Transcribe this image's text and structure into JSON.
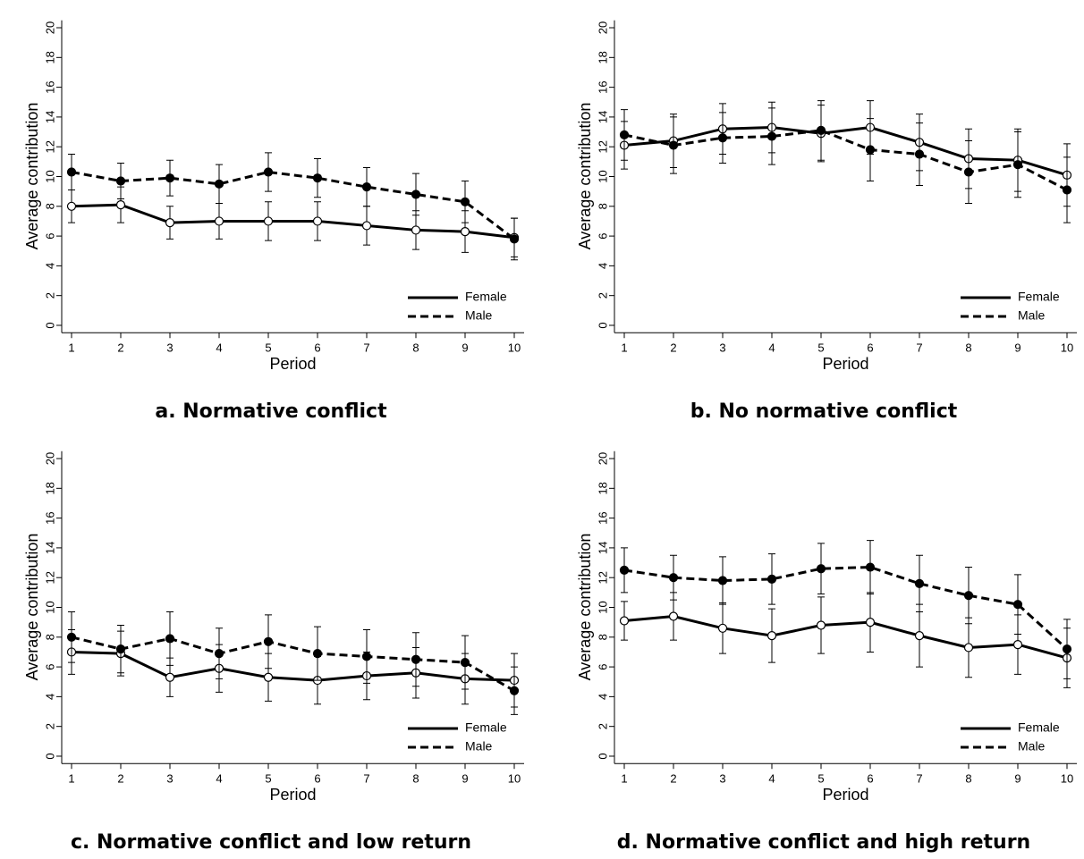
{
  "chart_data": [
    {
      "type": "line",
      "title": "a. Normative conflict",
      "x_label": "Period",
      "y_label": "Average contribution",
      "x": [
        1,
        2,
        3,
        4,
        5,
        6,
        7,
        8,
        9,
        10
      ],
      "xlim": [
        0.8,
        10.2
      ],
      "xticks": [
        1,
        2,
        3,
        4,
        5,
        6,
        7,
        8,
        9,
        10
      ],
      "ylim": [
        -0.5,
        20.5
      ],
      "yticks": [
        0,
        2,
        4,
        6,
        8,
        10,
        12,
        14,
        16,
        18,
        20
      ],
      "grid": false,
      "legend": "lower right",
      "series": [
        {
          "name": "Female",
          "color": "#000000",
          "dash": "solid",
          "marker": "hollow",
          "values": [
            8.0,
            8.1,
            6.9,
            7.0,
            7.0,
            7.0,
            6.7,
            6.4,
            6.3,
            5.9
          ],
          "errors": [
            1.1,
            1.2,
            1.1,
            1.2,
            1.3,
            1.3,
            1.3,
            1.3,
            1.4,
            1.3
          ]
        },
        {
          "name": "Male",
          "color": "#000000",
          "dash": "dashed",
          "marker": "filled",
          "values": [
            10.3,
            9.7,
            9.9,
            9.5,
            10.3,
            9.9,
            9.3,
            8.8,
            8.3,
            5.8
          ],
          "errors": [
            1.2,
            1.2,
            1.2,
            1.3,
            1.3,
            1.3,
            1.3,
            1.4,
            1.4,
            1.4
          ]
        }
      ]
    },
    {
      "type": "line",
      "title": "b. No normative conflict",
      "x_label": "Period",
      "y_label": "Average contribution",
      "x": [
        1,
        2,
        3,
        4,
        5,
        6,
        7,
        8,
        9,
        10
      ],
      "xlim": [
        0.8,
        10.2
      ],
      "xticks": [
        1,
        2,
        3,
        4,
        5,
        6,
        7,
        8,
        9,
        10
      ],
      "ylim": [
        -0.5,
        20.5
      ],
      "yticks": [
        0,
        2,
        4,
        6,
        8,
        10,
        12,
        14,
        16,
        18,
        20
      ],
      "grid": false,
      "legend": "lower right",
      "series": [
        {
          "name": "Female",
          "color": "#000000",
          "dash": "solid",
          "marker": "hollow",
          "values": [
            12.1,
            12.4,
            13.2,
            13.3,
            12.9,
            13.3,
            12.3,
            11.2,
            11.1,
            10.1
          ],
          "errors": [
            1.6,
            1.8,
            1.7,
            1.7,
            1.9,
            1.8,
            1.9,
            2.0,
            2.1,
            2.1
          ]
        },
        {
          "name": "Male",
          "color": "#000000",
          "dash": "dashed",
          "marker": "filled",
          "values": [
            12.8,
            12.1,
            12.6,
            12.7,
            13.1,
            11.8,
            11.5,
            10.3,
            10.8,
            9.1
          ],
          "errors": [
            1.7,
            1.9,
            1.7,
            1.9,
            2.0,
            2.1,
            2.1,
            2.1,
            2.2,
            2.2
          ]
        }
      ]
    },
    {
      "type": "line",
      "title": "c. Normative conflict and low return",
      "x_label": "Period",
      "y_label": "Average contribution",
      "x": [
        1,
        2,
        3,
        4,
        5,
        6,
        7,
        8,
        9,
        10
      ],
      "xlim": [
        0.8,
        10.2
      ],
      "xticks": [
        1,
        2,
        3,
        4,
        5,
        6,
        7,
        8,
        9,
        10
      ],
      "ylim": [
        -0.5,
        20.5
      ],
      "yticks": [
        0,
        2,
        4,
        6,
        8,
        10,
        12,
        14,
        16,
        18,
        20
      ],
      "grid": false,
      "legend": "lower right",
      "series": [
        {
          "name": "Female",
          "color": "#000000",
          "dash": "solid",
          "marker": "hollow",
          "values": [
            7.0,
            6.9,
            5.3,
            5.9,
            5.3,
            5.1,
            5.4,
            5.6,
            5.2,
            5.1
          ],
          "errors": [
            1.5,
            1.5,
            1.3,
            1.6,
            1.6,
            1.6,
            1.6,
            1.7,
            1.7,
            1.8
          ]
        },
        {
          "name": "Male",
          "color": "#000000",
          "dash": "dashed",
          "marker": "filled",
          "values": [
            8.0,
            7.2,
            7.9,
            6.9,
            7.7,
            6.9,
            6.7,
            6.5,
            6.3,
            4.4
          ],
          "errors": [
            1.7,
            1.6,
            1.8,
            1.7,
            1.8,
            1.8,
            1.8,
            1.8,
            1.8,
            1.6
          ]
        }
      ]
    },
    {
      "type": "line",
      "title": "d. Normative conflict and high return",
      "x_label": "Period",
      "y_label": "Average contribution",
      "x": [
        1,
        2,
        3,
        4,
        5,
        6,
        7,
        8,
        9,
        10
      ],
      "xlim": [
        0.8,
        10.2
      ],
      "xticks": [
        1,
        2,
        3,
        4,
        5,
        6,
        7,
        8,
        9,
        10
      ],
      "ylim": [
        -0.5,
        20.5
      ],
      "yticks": [
        0,
        2,
        4,
        6,
        8,
        10,
        12,
        14,
        16,
        18,
        20
      ],
      "grid": false,
      "legend": "lower right",
      "series": [
        {
          "name": "Female",
          "color": "#000000",
          "dash": "solid",
          "marker": "hollow",
          "values": [
            9.1,
            9.4,
            8.6,
            8.1,
            8.8,
            9.0,
            8.1,
            7.3,
            7.5,
            6.6
          ],
          "errors": [
            1.3,
            1.6,
            1.7,
            1.8,
            1.9,
            2.0,
            2.1,
            2.0,
            2.0,
            2.0
          ]
        },
        {
          "name": "Male",
          "color": "#000000",
          "dash": "dashed",
          "marker": "filled",
          "values": [
            12.5,
            12.0,
            11.8,
            11.9,
            12.6,
            12.7,
            11.6,
            10.8,
            10.2,
            7.2
          ],
          "errors": [
            1.5,
            1.5,
            1.6,
            1.7,
            1.7,
            1.8,
            1.9,
            1.9,
            2.0,
            2.0
          ]
        }
      ]
    }
  ]
}
